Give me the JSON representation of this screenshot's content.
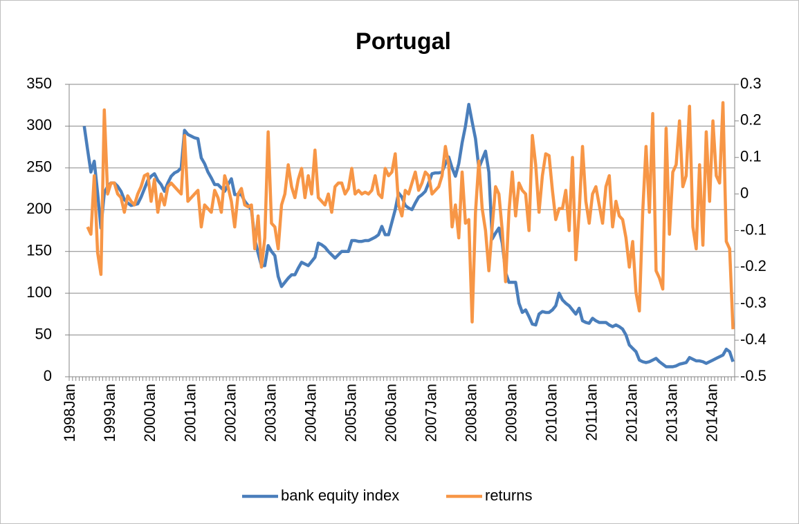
{
  "chart_data": {
    "type": "line",
    "title": "Portugal",
    "categories": [
      "1998Jan",
      null,
      null,
      null,
      null,
      null,
      null,
      null,
      null,
      null,
      null,
      null,
      "1999Jan",
      null,
      null,
      null,
      null,
      null,
      null,
      null,
      null,
      null,
      null,
      null,
      "2000Jan",
      null,
      null,
      null,
      null,
      null,
      null,
      null,
      null,
      null,
      null,
      null,
      "2001Jan",
      null,
      null,
      null,
      null,
      null,
      null,
      null,
      null,
      null,
      null,
      null,
      "2002Jan",
      null,
      null,
      null,
      null,
      null,
      null,
      null,
      null,
      null,
      null,
      null,
      "2003Jan",
      null,
      null,
      null,
      null,
      null,
      null,
      null,
      null,
      null,
      null,
      null,
      "2004Jan",
      null,
      null,
      null,
      null,
      null,
      null,
      null,
      null,
      null,
      null,
      null,
      "2005Jan",
      null,
      null,
      null,
      null,
      null,
      null,
      null,
      null,
      null,
      null,
      null,
      "2006Jan",
      null,
      null,
      null,
      null,
      null,
      null,
      null,
      null,
      null,
      null,
      null,
      "2007Jan",
      null,
      null,
      null,
      null,
      null,
      null,
      null,
      null,
      null,
      null,
      null,
      "2008Jan",
      null,
      null,
      null,
      null,
      null,
      null,
      null,
      null,
      null,
      null,
      null,
      "2009Jan",
      null,
      null,
      null,
      null,
      null,
      null,
      null,
      null,
      null,
      null,
      null,
      "2010Jan",
      null,
      null,
      null,
      null,
      null,
      null,
      null,
      null,
      null,
      null,
      null,
      "2011Jan",
      null,
      null,
      null,
      null,
      null,
      null,
      null,
      null,
      null,
      null,
      null,
      "2012Jan",
      null,
      null,
      null,
      null,
      null,
      null,
      null,
      null,
      null,
      null,
      null,
      "2013Jan",
      null,
      null,
      null,
      null,
      null,
      null,
      null,
      null,
      null,
      null,
      null,
      "2014Jan",
      null,
      null,
      null,
      null,
      null,
      null
    ],
    "series": [
      {
        "name": "bank equity index",
        "color": "#4a7ebb",
        "axis": "y",
        "values": [
          null,
          null,
          null,
          null,
          300,
          272,
          245,
          258,
          220,
          178,
          220,
          228,
          232,
          232,
          228,
          222,
          212,
          208,
          205,
          206,
          207,
          215,
          225,
          235,
          240,
          243,
          235,
          230,
          222,
          232,
          240,
          244,
          246,
          250,
          295,
          290,
          288,
          286,
          285,
          262,
          255,
          245,
          238,
          230,
          230,
          226,
          222,
          230,
          237,
          218,
          218,
          218,
          210,
          205,
          200,
          165,
          148,
          133,
          133,
          157,
          150,
          145,
          120,
          108,
          113,
          118,
          122,
          122,
          130,
          137,
          135,
          133,
          138,
          143,
          160,
          158,
          155,
          150,
          146,
          142,
          146,
          150,
          150,
          150,
          163,
          163,
          162,
          162,
          163,
          163,
          165,
          167,
          170,
          180,
          170,
          170,
          185,
          200,
          220,
          215,
          205,
          202,
          200,
          208,
          215,
          218,
          222,
          232,
          243,
          244,
          244,
          245,
          255,
          263,
          250,
          240,
          255,
          280,
          300,
          326,
          305,
          285,
          250,
          260,
          270,
          245,
          165,
          172,
          178,
          160,
          125,
          113,
          113,
          113,
          88,
          77,
          80,
          72,
          63,
          62,
          75,
          78,
          77,
          77,
          80,
          85,
          100,
          92,
          88,
          85,
          80,
          75,
          82,
          67,
          65,
          64,
          70,
          67,
          65,
          65,
          65,
          62,
          60,
          62,
          60,
          57,
          50,
          38,
          34,
          30,
          20,
          18,
          17,
          18,
          20,
          22,
          18,
          15,
          12,
          12,
          12,
          13,
          15,
          16,
          17,
          23,
          21,
          19,
          19,
          18,
          16,
          18,
          20,
          22,
          24,
          26,
          33,
          30,
          18
        ]
      },
      {
        "name": "returns",
        "color": "#f79646",
        "axis": "y2",
        "values": [
          null,
          null,
          null,
          null,
          null,
          -0.09,
          -0.11,
          0.05,
          -0.16,
          -0.22,
          0.23,
          0.0,
          0.03,
          0.03,
          0.0,
          -0.01,
          -0.05,
          -0.005,
          -0.02,
          -0.03,
          0.0,
          0.02,
          0.05,
          0.055,
          -0.02,
          0.04,
          -0.05,
          0.0,
          -0.03,
          0.02,
          0.03,
          0.02,
          0.01,
          0.0,
          0.16,
          -0.02,
          -0.01,
          0.0,
          0.01,
          -0.09,
          -0.03,
          -0.04,
          -0.05,
          0.01,
          -0.01,
          -0.05,
          0.05,
          0.02,
          -0.02,
          -0.09,
          0.0,
          0.015,
          -0.03,
          -0.035,
          -0.03,
          -0.15,
          -0.06,
          -0.2,
          -0.12,
          0.17,
          -0.08,
          -0.09,
          -0.15,
          -0.03,
          0.0,
          0.08,
          0.02,
          -0.01,
          0.04,
          0.07,
          -0.01,
          0.05,
          0.0,
          0.12,
          -0.01,
          -0.02,
          -0.03,
          0.0,
          -0.05,
          0.02,
          0.03,
          0.03,
          0.0,
          0.015,
          0.07,
          0.0,
          0.01,
          0.0,
          0.005,
          0.0,
          0.01,
          0.05,
          0.0,
          -0.01,
          0.07,
          0.05,
          0.06,
          0.11,
          -0.03,
          -0.06,
          0.01,
          0.0,
          0.03,
          0.06,
          0.01,
          0.03,
          0.06,
          0.05,
          0.0,
          0.01,
          0.02,
          0.05,
          0.13,
          0.08,
          -0.09,
          -0.03,
          -0.12,
          0.06,
          -0.08,
          -0.07,
          -0.35,
          -0.05,
          0.09,
          -0.04,
          -0.1,
          -0.21,
          -0.09,
          0.02,
          0.0,
          -0.1,
          -0.24,
          -0.05,
          0.06,
          -0.06,
          0.03,
          0.01,
          0.0,
          -0.1,
          0.16,
          0.08,
          -0.05,
          0.05,
          0.11,
          0.105,
          0.01,
          -0.07,
          -0.04,
          -0.04,
          0.01,
          -0.1,
          0.1,
          -0.18,
          -0.05,
          0.13,
          -0.02,
          -0.08,
          0.0,
          0.02,
          -0.03,
          -0.08,
          0.02,
          0.05,
          -0.09,
          -0.02,
          -0.06,
          -0.07,
          -0.12,
          -0.2,
          -0.13,
          -0.27,
          -0.32,
          -0.05,
          0.13,
          -0.05,
          0.22,
          -0.21,
          -0.23,
          -0.26,
          0.18,
          -0.11,
          0.06,
          0.08,
          0.2,
          0.02,
          0.05,
          0.24,
          -0.09,
          -0.15,
          0.08,
          -0.14,
          0.17,
          -0.02,
          0.2,
          0.05,
          0.03,
          0.25,
          -0.13,
          -0.15,
          -0.37
        ]
      }
    ],
    "ylim": [
      0,
      350
    ],
    "yticks": [
      0,
      50,
      100,
      150,
      200,
      250,
      300,
      350
    ],
    "y2lim": [
      -0.5,
      0.3
    ],
    "y2ticks": [
      -0.5,
      -0.4,
      -0.3,
      -0.2,
      -0.1,
      0,
      0.1,
      0.2,
      0.3
    ],
    "grid": true,
    "legend": "bottom"
  }
}
